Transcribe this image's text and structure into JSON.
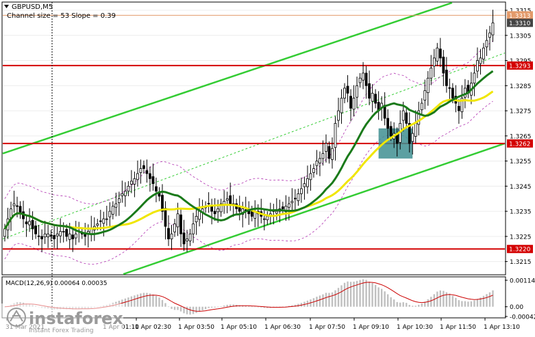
{
  "header": {
    "symbol_label": "GBPUSD,M5",
    "indicator_info": "Channel size = 53 Slope = 0.39"
  },
  "macd": {
    "label": "MACD(12,26,9) 0.00064 0.00035",
    "ticks": [
      "0.00114",
      "0.00",
      "-0.00042"
    ],
    "ticks_values": [
      0.00114,
      0,
      -0.00042
    ]
  },
  "watermark": {
    "brand": "instaforex",
    "tagline": "Instant Forex Trading"
  },
  "colors": {
    "candle": "#000000",
    "ma_fast": "#1a7a1a",
    "ma_slow": "#f0e600",
    "channel": "#33cc33",
    "level_line": "#d40000",
    "level_badge": "#d40000",
    "price_badge": "#444444",
    "highlight_box": "#3f8f92",
    "envelope": "#b030b0",
    "macd_hist": "#c0c0c0",
    "macd_signal": "#cc0000"
  },
  "chart_data": {
    "type": "candlestick",
    "symbol": "GBPUSD",
    "timeframe": "M5",
    "ylim": [
      1.321,
      1.3318
    ],
    "y_ticks": [
      1.3315,
      1.3305,
      1.3295,
      1.3285,
      1.3275,
      1.3265,
      1.3255,
      1.3245,
      1.3235,
      1.3225,
      1.3215
    ],
    "y_tick_labels": [
      "1.3315",
      "1.3305",
      "1.3295",
      "1.3285",
      "1.3275",
      "1.3265",
      "1.3255",
      "1.3245",
      "1.3235",
      "1.3225",
      "1.3215"
    ],
    "x_tick_labels": [
      "31 Mar 2021",
      "1 Apr 01:10",
      "1 Apr 02:30",
      "1 Apr 03:50",
      "1 Apr 05:10",
      "1 Apr 06:30",
      "1 Apr 07:50",
      "1 Apr 09:10",
      "1 Apr 10:30",
      "1 Apr 11:50",
      "1 Apr 13:10"
    ],
    "levels": [
      {
        "value": 1.3293,
        "label": "1.3293"
      },
      {
        "value": 1.3262,
        "label": "1.3262"
      },
      {
        "value": 1.322,
        "label": "1.3220"
      }
    ],
    "current_price": {
      "value": 1.331,
      "label": "1.3310"
    },
    "ask_price": {
      "value": 1.3313,
      "label": "1.3313"
    },
    "closes": [
      1.3228,
      1.3232,
      1.3236,
      1.3238,
      1.3237,
      1.3234,
      1.3232,
      1.323,
      1.3231,
      1.3228,
      1.3226,
      1.3225,
      1.3224,
      1.3226,
      1.3226,
      1.3225,
      1.3224,
      1.3226,
      1.3227,
      1.3227,
      1.3225,
      1.3226,
      1.3224,
      1.3226,
      1.3227,
      1.3226,
      1.3225,
      1.3227,
      1.3228,
      1.3229,
      1.323,
      1.3231,
      1.3232,
      1.3232,
      1.3235,
      1.3237,
      1.3238,
      1.324,
      1.3242,
      1.3243,
      1.3245,
      1.3247,
      1.3248,
      1.325,
      1.3252,
      1.3252,
      1.325,
      1.3248,
      1.3246,
      1.3243,
      1.3241,
      1.3235,
      1.3229,
      1.3224,
      1.3226,
      1.323,
      1.3234,
      1.3226,
      1.3222,
      1.3224,
      1.3226,
      1.323,
      1.3233,
      1.3235,
      1.3236,
      1.3237,
      1.3238,
      1.3235,
      1.3234,
      1.3236,
      1.3238,
      1.3239,
      1.324,
      1.3238,
      1.3238,
      1.3236,
      1.3235,
      1.3236,
      1.3235,
      1.3234,
      1.3233,
      1.3235,
      1.3234,
      1.3233,
      1.3232,
      1.3233,
      1.3234,
      1.3235,
      1.3235,
      1.3236,
      1.3236,
      1.3237,
      1.3238,
      1.3239,
      1.324,
      1.3242,
      1.3244,
      1.3246,
      1.3248,
      1.325,
      1.3252,
      1.3255,
      1.3256,
      1.3258,
      1.3262,
      1.3256,
      1.326,
      1.327,
      1.3275,
      1.328,
      1.3284,
      1.3282,
      1.3276,
      1.328,
      1.3285,
      1.3288,
      1.329,
      1.3285,
      1.328,
      1.3282,
      1.3278,
      1.3275,
      1.3278,
      1.3272,
      1.3268,
      1.3265,
      1.3266,
      1.3262,
      1.327,
      1.3275,
      1.327,
      1.3262,
      1.3266,
      1.327,
      1.3275,
      1.3278,
      1.3283,
      1.3288,
      1.3292,
      1.3296,
      1.33,
      1.3296,
      1.329,
      1.3285,
      1.3284,
      1.328,
      1.3278,
      1.3275,
      1.328,
      1.3284,
      1.3282,
      1.3286,
      1.329,
      1.3295,
      1.3296,
      1.33,
      1.3303,
      1.3306,
      1.331
    ]
  }
}
